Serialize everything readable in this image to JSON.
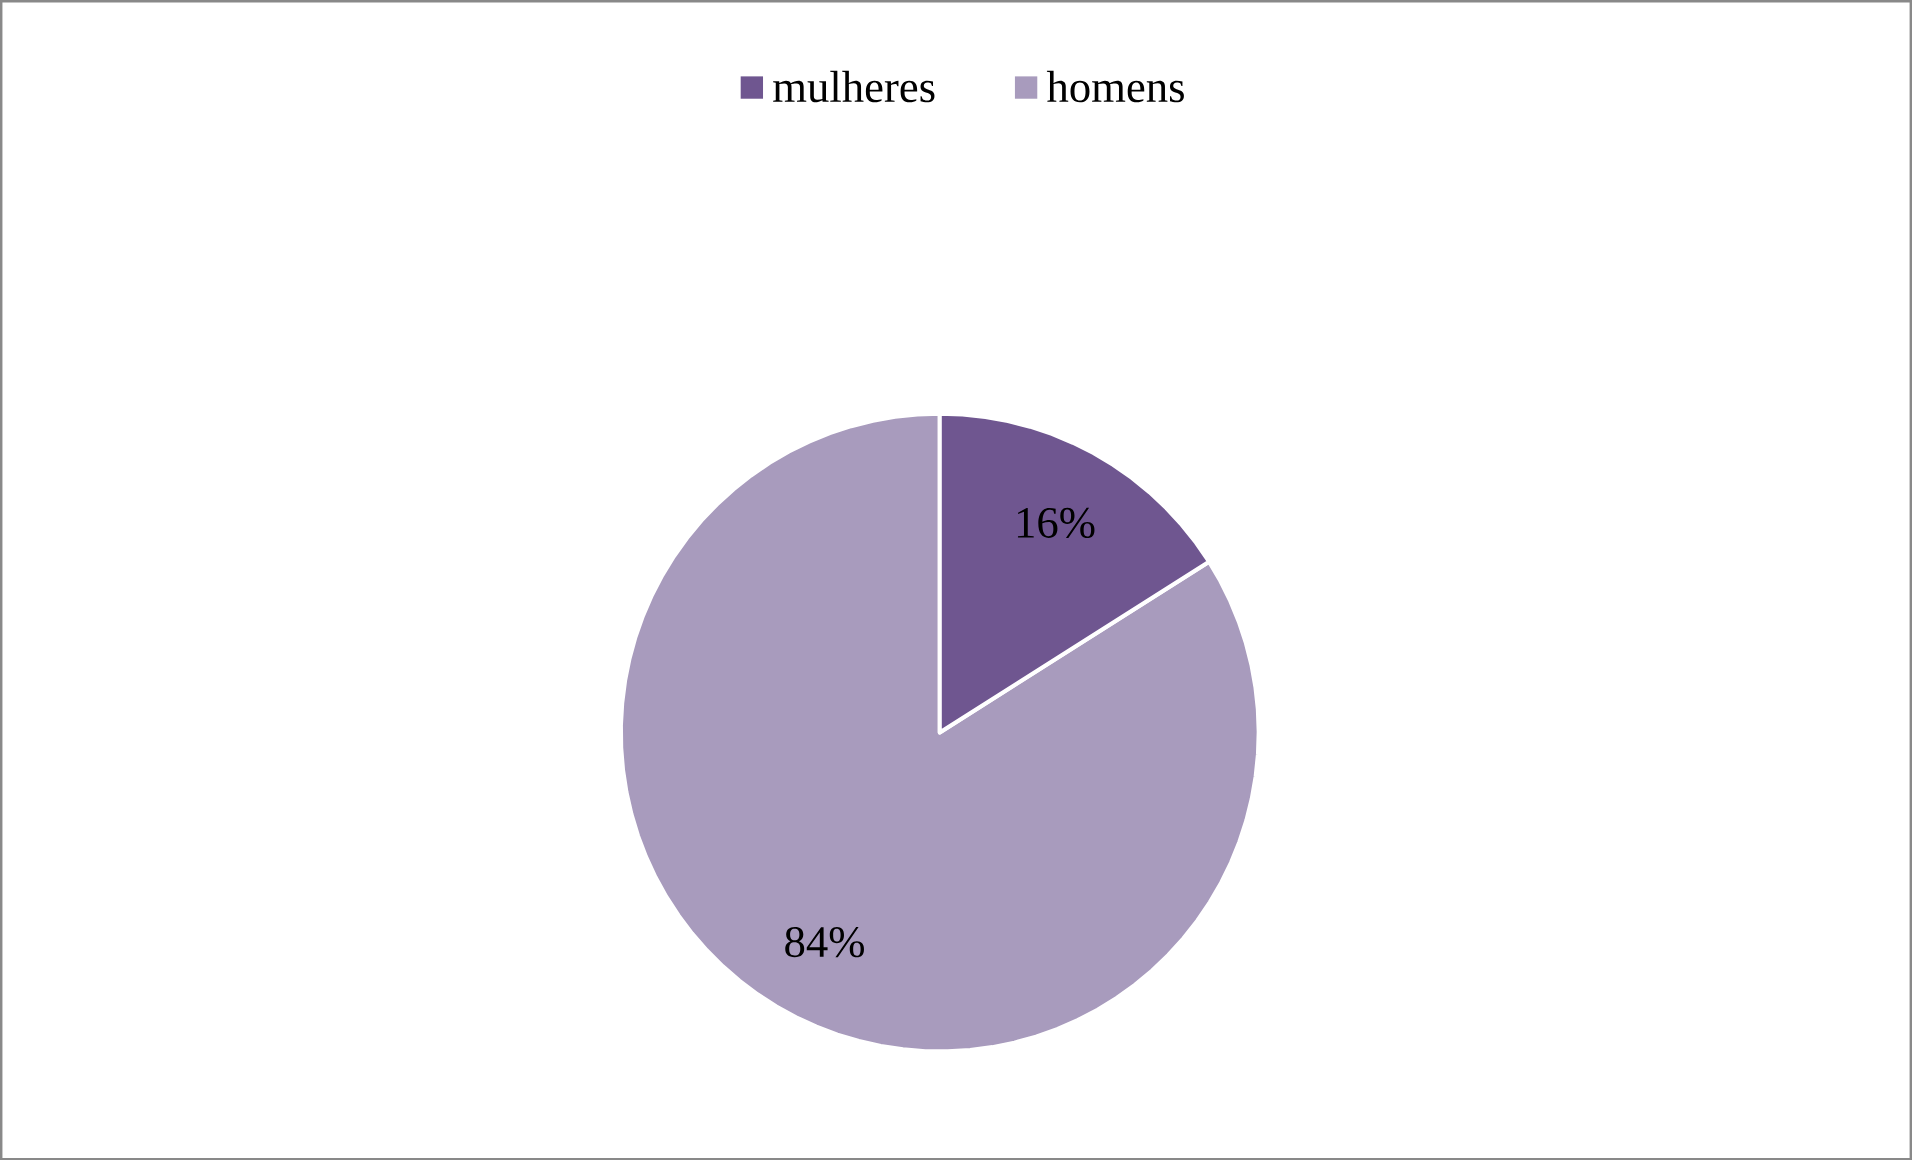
{
  "chart_data": {
    "type": "pie",
    "categories": [
      "mulheres",
      "homens"
    ],
    "values": [
      16,
      84
    ],
    "value_labels": [
      "16%",
      "84%"
    ],
    "colors": [
      "#6f5690",
      "#a89bbd"
    ],
    "legend": "top"
  }
}
